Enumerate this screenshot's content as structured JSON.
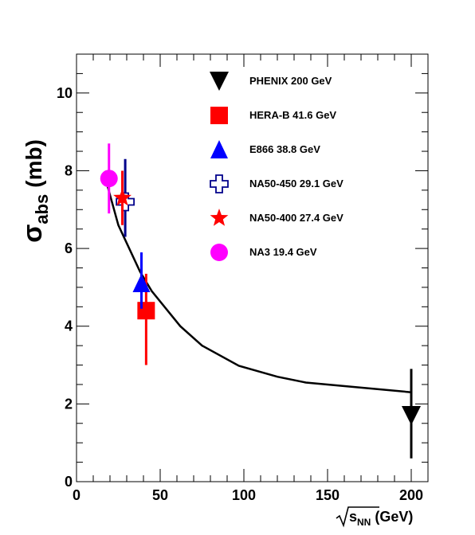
{
  "chart_data": {
    "type": "scatter",
    "title": "",
    "xlabel": {
      "main": "s",
      "sub": "NN",
      "unit": "(GeV)"
    },
    "ylabel": {
      "main": "σ",
      "sub": "abs",
      "unit": "(mb)"
    },
    "xlim": [
      0,
      210
    ],
    "ylim": [
      0,
      11
    ],
    "x_major_ticks": [
      0,
      50,
      100,
      150,
      200
    ],
    "x_tick_labels": [
      "0",
      "50",
      "100",
      "150",
      "200"
    ],
    "y_major_ticks": [
      0,
      2,
      4,
      6,
      8,
      10
    ],
    "y_tick_labels": [
      "0",
      "2",
      "4",
      "6",
      "8",
      "10"
    ],
    "grid": false,
    "legend_position": "top-right",
    "series": [
      {
        "name": "PHENIX 200 GeV",
        "marker": "triangle-down",
        "color": "#000000",
        "x": 200,
        "y": 1.7,
        "y_err_low": 1.1,
        "y_err_high": 1.2
      },
      {
        "name": "HERA-B 41.6 GeV",
        "marker": "square",
        "color": "#ff0000",
        "x": 41.6,
        "y": 4.4,
        "y_err_low": 1.4,
        "y_err_high": 0.95
      },
      {
        "name": "E866 38.8 GeV",
        "marker": "triangle-up",
        "color": "#0000ff",
        "x": 38.8,
        "y": 5.1,
        "y_err_low": 0.65,
        "y_err_high": 0.8
      },
      {
        "name": "NA50-450 29.1 GeV",
        "marker": "open-cross",
        "color": "#00008b",
        "x": 29.1,
        "y": 7.2,
        "y_err_low": 0.9,
        "y_err_high": 1.1
      },
      {
        "name": "NA50-400 27.4 GeV",
        "marker": "star",
        "color": "#ff0000",
        "x": 27.4,
        "y": 7.3,
        "y_err_low": 0.7,
        "y_err_high": 0.7
      },
      {
        "name": "NA3 19.4 GeV",
        "marker": "circle",
        "color": "#ff00ff",
        "x": 19.4,
        "y": 7.8,
        "y_err_low": 0.9,
        "y_err_high": 0.9
      }
    ],
    "curve": {
      "color": "#000000",
      "x": [
        17.3,
        25,
        38,
        45,
        62,
        75,
        97,
        120,
        137,
        170,
        200
      ],
      "y": [
        7.8,
        6.6,
        5.4,
        4.9,
        4.0,
        3.5,
        2.98,
        2.7,
        2.55,
        2.42,
        2.3
      ]
    }
  }
}
